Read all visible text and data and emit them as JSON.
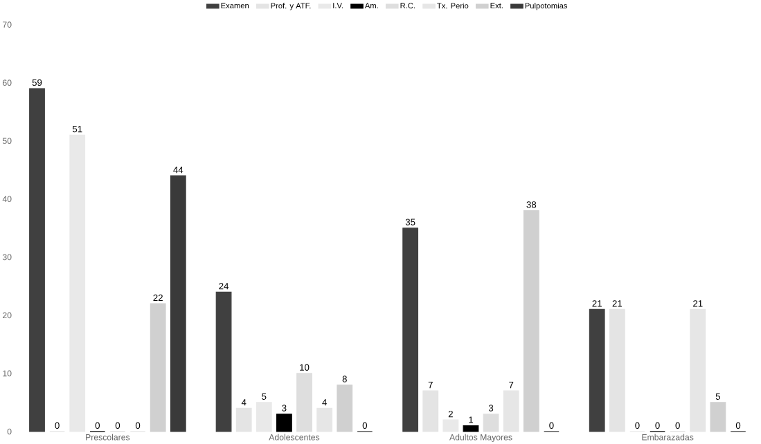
{
  "chart_data": {
    "type": "bar",
    "categories": [
      "Prescolares",
      "Adolescentes",
      "Adultos Mayores",
      "Embarazadas"
    ],
    "series": [
      {
        "name": "Examen",
        "color": "#404040",
        "values": [
          59,
          24,
          35,
          21
        ]
      },
      {
        "name": "Prof. y ATF.",
        "color": "#e4e4e4",
        "values": [
          0,
          4,
          7,
          21
        ]
      },
      {
        "name": "I.V.",
        "color": "#e9e9e9",
        "values": [
          51,
          5,
          2,
          0
        ]
      },
      {
        "name": "Am.",
        "color": "#000000",
        "values": [
          0,
          3,
          1,
          0
        ]
      },
      {
        "name": "R.C.",
        "color": "#dedede",
        "values": [
          0,
          10,
          3,
          0
        ]
      },
      {
        "name": "Tx. Perio",
        "color": "#e6e6e6",
        "values": [
          0,
          4,
          7,
          21
        ]
      },
      {
        "name": "Ext.",
        "color": "#d0d0d0",
        "values": [
          22,
          8,
          38,
          5
        ]
      },
      {
        "name": "Pulpotomias",
        "color": "#3a3a3a",
        "values": [
          44,
          0,
          0,
          0
        ]
      }
    ],
    "ylim": [
      0,
      70
    ],
    "yticks": [
      0,
      10,
      20,
      30,
      40,
      50,
      60,
      70
    ],
    "data_labels": true,
    "legend": "top",
    "grid": false
  }
}
